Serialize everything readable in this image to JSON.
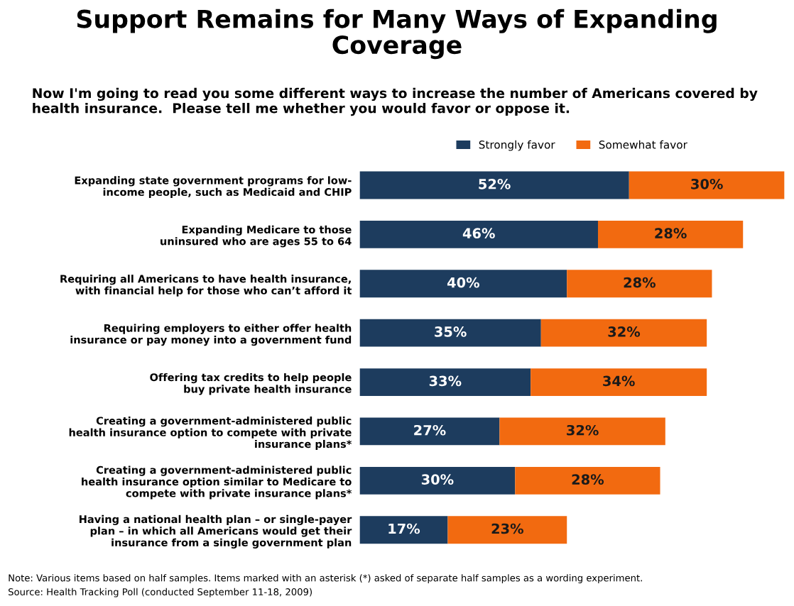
{
  "chart_data": {
    "type": "bar",
    "orientation": "horizontal",
    "stacked": true,
    "legend": "top",
    "grid": false,
    "title": "Support Remains for Many Ways of Expanding\nCoverage",
    "subtitle": "Now I'm going to read you some different ways to increase the number of Americans covered by health insurance.  Please tell me whether you would favor or oppose it.",
    "categories": [
      "Expanding state government programs for low-\nincome people, such as Medicaid and CHIP",
      "Expanding Medicare to those\nuninsured who are ages 55 to 64",
      "Requiring all Americans to have health insurance,\nwith financial help for those who can’t afford it",
      "Requiring employers to either offer health\ninsurance or pay money into a government fund",
      "Offering tax credits to help people\nbuy private health insurance",
      "Creating a government-administered public\nhealth insurance option to compete with private\ninsurance plans*",
      "Creating a government-administered public\nhealth insurance option similar to Medicare to\ncompete with private insurance plans*",
      "Having a national health plan – or single-payer\nplan – in which all Americans would get their\ninsurance from a single government plan"
    ],
    "series": [
      {
        "name": "Strongly favor",
        "color": "#1d3c5e",
        "values": [
          52,
          46,
          40,
          35,
          33,
          27,
          30,
          17
        ],
        "value_labels": [
          "52%",
          "46%",
          "40%",
          "35%",
          "33%",
          "27%",
          "30%",
          "17%"
        ]
      },
      {
        "name": "Somewhat favor",
        "color": "#f26a10",
        "values": [
          30,
          28,
          28,
          32,
          34,
          32,
          28,
          23
        ],
        "value_labels": [
          "30%",
          "28%",
          "28%",
          "32%",
          "34%",
          "32%",
          "28%",
          "23%"
        ]
      }
    ],
    "annotations": [
      "Note: Various items based on half samples. Items marked with an asterisk (*) asked of separate half samples as a wording experiment.",
      "Source: Health Tracking Poll (conducted September 11-18, 2009)"
    ]
  }
}
